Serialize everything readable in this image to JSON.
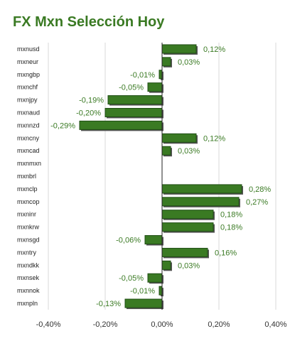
{
  "chart_data": {
    "type": "bar",
    "orientation": "horizontal",
    "title": "FX Mxn Selección Hoy",
    "categories": [
      "mxnusd",
      "mxneur",
      "mxngbp",
      "mxnchf",
      "mxnjpy",
      "mxnaud",
      "mxnnzd",
      "mxncny",
      "mxncad",
      "mxnmxn",
      "mxnbrl",
      "mxnclp",
      "mxncop",
      "mxninr",
      "mxnkrw",
      "mxnsgd",
      "mxntry",
      "mxndkk",
      "mxnsek",
      "mxnnok",
      "mxnpln"
    ],
    "values": [
      0.12,
      0.03,
      -0.01,
      -0.05,
      -0.19,
      -0.2,
      -0.29,
      0.12,
      0.03,
      null,
      null,
      0.28,
      0.27,
      0.18,
      0.18,
      -0.06,
      0.16,
      0.03,
      -0.05,
      -0.01,
      -0.13
    ],
    "value_labels": [
      "0,12%",
      "0,03%",
      "-0,01%",
      "-0,05%",
      "-0,19%",
      "-0,20%",
      "-0,29%",
      "0,12%",
      "0,03%",
      "",
      "",
      "0,28%",
      "0,27%",
      "0,18%",
      "0,18%",
      "-0,06%",
      "0,16%",
      "0,03%",
      "-0,05%",
      "-0,01%",
      "-0,13%"
    ],
    "xlim": [
      -0.4,
      0.4
    ],
    "xticks": [
      -0.4,
      -0.2,
      0.0,
      0.2,
      0.4
    ],
    "xtick_labels": [
      "-0,40%",
      "-0,20%",
      "0,00%",
      "0,20%",
      "0,40%"
    ],
    "unit": "%",
    "grid": "vertical",
    "colors": {
      "bar": "#3a7a23",
      "bar_edge": "#1f4d14",
      "shadow": "#555555",
      "title": "#3a7a23",
      "value_label": "#3a7a23",
      "grid": "#d9d9d9"
    }
  }
}
